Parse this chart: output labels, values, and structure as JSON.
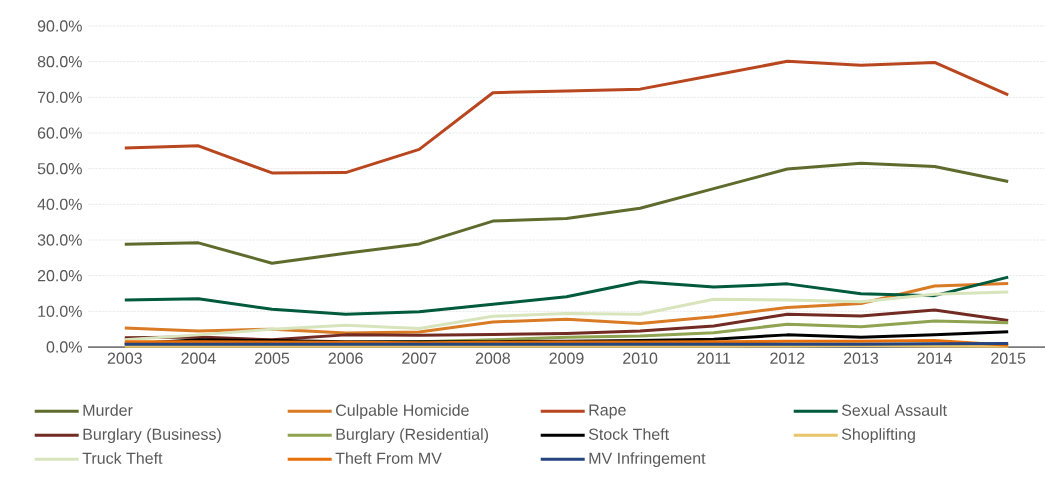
{
  "chart_data": {
    "type": "line",
    "categories": [
      "2003",
      "2004",
      "2005",
      "2006",
      "2007",
      "2008",
      "2009",
      "2010",
      "2011",
      "2012",
      "2013",
      "2014",
      "2015"
    ],
    "ylim": [
      0,
      90
    ],
    "yticks": [
      {
        "value": 0,
        "label": "0.0%"
      },
      {
        "value": 10,
        "label": "10.0%"
      },
      {
        "value": 20,
        "label": "20.0%"
      },
      {
        "value": 30,
        "label": "30.0%"
      },
      {
        "value": 40,
        "label": "40.0%"
      },
      {
        "value": 50,
        "label": "50.0%"
      },
      {
        "value": 60,
        "label": "60.0%"
      },
      {
        "value": 70,
        "label": "70.0%"
      },
      {
        "value": 80,
        "label": "80.0%"
      },
      {
        "value": 90,
        "label": "90.0%"
      }
    ],
    "grid": "y",
    "legend": "bottom",
    "marker": "none",
    "line_style": "solid",
    "series": [
      {
        "name": "Murder",
        "color": "#5f6b2d",
        "values": [
          28.8,
          29.2,
          23.5,
          26.3,
          28.9,
          35.3,
          36.0,
          38.9,
          44.4,
          49.9,
          51.5,
          50.6,
          46.4
        ]
      },
      {
        "name": "Culpable Homicide",
        "color": "#d97a25",
        "values": [
          5.3,
          4.5,
          5.0,
          3.9,
          4.2,
          7.0,
          7.8,
          6.6,
          8.5,
          11.1,
          12.2,
          17.1,
          17.8
        ]
      },
      {
        "name": "Rape",
        "color": "#b8461f",
        "values": [
          55.8,
          56.4,
          48.8,
          48.9,
          55.4,
          71.3,
          71.8,
          72.3,
          76.2,
          80.1,
          79.0,
          79.8,
          70.7
        ]
      },
      {
        "name": "Sexual Assault",
        "color": "#005a3c",
        "values": [
          13.2,
          13.5,
          10.6,
          9.2,
          9.9,
          12.0,
          14.1,
          18.3,
          16.8,
          17.7,
          14.9,
          14.4,
          19.6
        ]
      },
      {
        "name": "Burglary (Business)",
        "color": "#722b22",
        "values": [
          2.6,
          2.8,
          2.0,
          3.4,
          3.3,
          3.5,
          3.8,
          4.5,
          5.9,
          9.2,
          8.7,
          10.4,
          7.4
        ]
      },
      {
        "name": "Burglary (Residential)",
        "color": "#8fa351",
        "values": [
          1.0,
          1.2,
          1.2,
          1.2,
          1.5,
          2.0,
          2.7,
          3.1,
          4.0,
          6.4,
          5.7,
          7.3,
          6.8
        ]
      },
      {
        "name": "Stock Theft",
        "color": "#000000",
        "values": [
          0.8,
          2.0,
          1.8,
          1.5,
          1.5,
          1.5,
          1.6,
          1.8,
          2.2,
          3.4,
          2.7,
          3.4,
          4.3
        ]
      },
      {
        "name": "Shoplifting",
        "color": "#e8c46a",
        "values": [
          0.2,
          0.2,
          0.2,
          0.2,
          0.2,
          0.2,
          0.2,
          0.2,
          0.2,
          0.3,
          0.4,
          0.3,
          0.2
        ]
      },
      {
        "name": "Truck Theft",
        "color": "#d8e4bc",
        "values": [
          2.0,
          3.4,
          5.0,
          6.1,
          5.2,
          8.6,
          9.4,
          9.2,
          13.4,
          13.2,
          12.7,
          14.8,
          15.4
        ]
      },
      {
        "name": "Theft From MV",
        "color": "#e8700a",
        "values": [
          1.5,
          1.5,
          1.4,
          1.3,
          1.2,
          1.3,
          1.4,
          1.4,
          1.5,
          1.6,
          1.6,
          1.8,
          0.5
        ]
      },
      {
        "name": "MV Infringement",
        "color": "#24457e",
        "values": [
          0.8,
          0.8,
          0.8,
          0.8,
          0.8,
          0.8,
          0.8,
          0.8,
          0.8,
          0.8,
          0.8,
          0.9,
          1.0
        ]
      }
    ]
  }
}
